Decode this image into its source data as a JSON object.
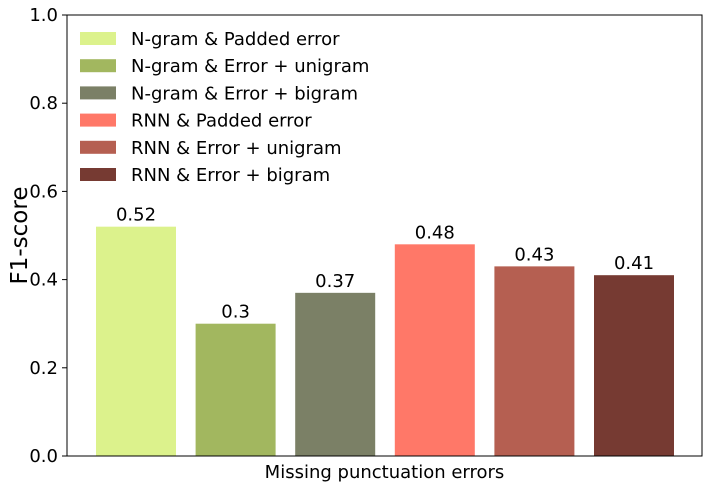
{
  "chart_data": {
    "type": "bar",
    "title": "",
    "xlabel": "Missing punctuation errors",
    "ylabel": "F1-score",
    "ylim": [
      0,
      1.0
    ],
    "yticks": [
      "0.0",
      "0.2",
      "0.4",
      "0.6",
      "0.8",
      "1.0"
    ],
    "ytick_values": [
      0,
      0.2,
      0.4,
      0.6,
      0.8,
      1.0
    ],
    "grid": false,
    "legend_position": "top-left",
    "series": [
      {
        "name": "N-gram & Padded error",
        "value": 0.52,
        "label": "0.52",
        "color": "#dcf28c"
      },
      {
        "name": "N-gram & Error + unigram",
        "value": 0.3,
        "label": "0.3",
        "color": "#a2b75f"
      },
      {
        "name": "N-gram & Error + bigram",
        "value": 0.37,
        "label": "0.37",
        "color": "#7b8066"
      },
      {
        "name": "RNN & Padded error",
        "value": 0.48,
        "label": "0.48",
        "color": "#ff7868"
      },
      {
        "name": "RNN & Error + unigram",
        "value": 0.43,
        "label": "0.43",
        "color": "#b55f51"
      },
      {
        "name": "RNN & Error + bigram",
        "value": 0.41,
        "label": "0.41",
        "color": "#763a32"
      }
    ]
  }
}
